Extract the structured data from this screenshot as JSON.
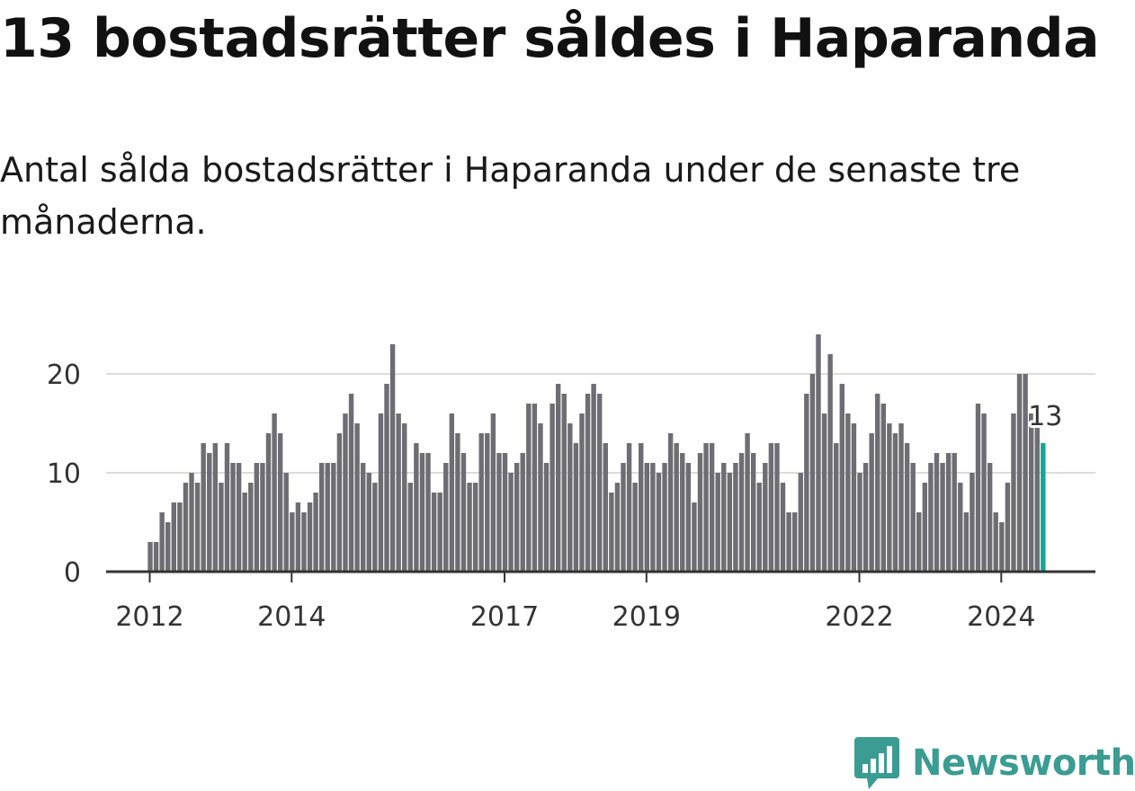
{
  "header": {
    "title": "13 bostadsrätter såldes i Haparanda",
    "subtitle": "Antal sålda bostadsrätter i Haparanda under de senaste tre månaderna."
  },
  "brand": {
    "name": "Newsworthy",
    "logo_icon": "bar-chart-speech-bubble-icon"
  },
  "colors": {
    "bar": "#6e6d73",
    "highlight": "#16a596",
    "grid": "#dddddd",
    "axis": "#333333",
    "brand": "#3a9c92"
  },
  "chart_data": {
    "type": "bar",
    "title": "13 bostadsrätter såldes i Haparanda",
    "xlabel": "",
    "ylabel": "",
    "ylim": [
      0,
      25
    ],
    "y_ticks": [
      0,
      10,
      20
    ],
    "x_ticks": [
      "2012",
      "2014",
      "2017",
      "2019",
      "2022",
      "2024"
    ],
    "start_month": "2012-01",
    "values": [
      3,
      3,
      6,
      5,
      7,
      7,
      9,
      10,
      9,
      13,
      12,
      13,
      9,
      13,
      11,
      11,
      8,
      9,
      11,
      11,
      14,
      16,
      14,
      10,
      6,
      7,
      6,
      7,
      8,
      11,
      11,
      11,
      14,
      16,
      18,
      15,
      11,
      10,
      9,
      16,
      19,
      23,
      16,
      15,
      9,
      13,
      12,
      12,
      8,
      8,
      11,
      16,
      14,
      12,
      9,
      9,
      14,
      14,
      16,
      12,
      12,
      10,
      11,
      12,
      17,
      17,
      15,
      11,
      17,
      19,
      18,
      15,
      13,
      16,
      18,
      19,
      18,
      13,
      8,
      9,
      11,
      13,
      9,
      13,
      11,
      11,
      10,
      11,
      14,
      13,
      12,
      11,
      7,
      12,
      13,
      13,
      10,
      11,
      10,
      11,
      12,
      14,
      12,
      9,
      11,
      13,
      13,
      9,
      6,
      6,
      10,
      18,
      20,
      24,
      16,
      22,
      13,
      19,
      16,
      15,
      10,
      11,
      14,
      18,
      17,
      15,
      14,
      15,
      13,
      11,
      6,
      9,
      11,
      12,
      11,
      12,
      12,
      9,
      6,
      10,
      17,
      16,
      11,
      6,
      5,
      9,
      16,
      20,
      20,
      16,
      15,
      13
    ],
    "highlight_label": "13"
  }
}
